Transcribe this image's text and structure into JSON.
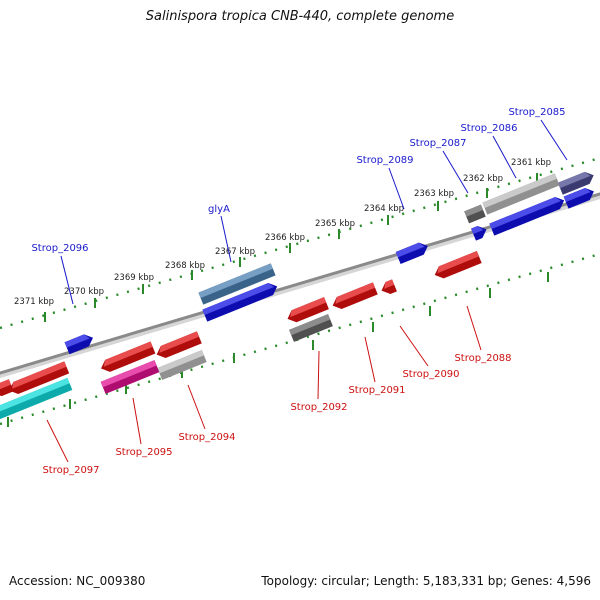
{
  "title": "Salinispora tropica CNB-440, complete genome",
  "footer": {
    "accession": "Accession: NC_009380",
    "summary": "Topology: circular; Length: 5,183,331 bp; Genes: 4,596"
  },
  "colors": {
    "forward_label": "#1a1acc",
    "reverse_label": "#cc1111",
    "backbone": "#8a8a8a",
    "tick": "#2a8a2a"
  },
  "scale_ticks": [
    "2361 kbp",
    "2362 kbp",
    "2363 kbp",
    "2364 kbp",
    "2365 kbp",
    "2366 kbp",
    "2367 kbp",
    "2368 kbp",
    "2369 kbp",
    "2370 kbp",
    "2371 kbp"
  ],
  "genes": [
    {
      "label": "Strop_2085",
      "strand": "forward",
      "color": "#4a4a90"
    },
    {
      "label": "Strop_2086",
      "strand": "forward",
      "color": "#b8b8b8"
    },
    {
      "label": "Strop_2087",
      "strand": "forward",
      "color": "#666666"
    },
    {
      "label": "Strop_2089",
      "strand": "forward",
      "color": "#1010e0"
    },
    {
      "label": "glyA",
      "strand": "forward",
      "color": "#4a7fb0"
    },
    {
      "label": "Strop_2096",
      "strand": "forward",
      "color": "#1010e0"
    },
    {
      "label": "Strop_2088",
      "strand": "reverse",
      "color": "#e01010"
    },
    {
      "label": "Strop_2090",
      "strand": "reverse",
      "color": "#e01010"
    },
    {
      "label": "Strop_2091",
      "strand": "reverse",
      "color": "#e01010"
    },
    {
      "label": "Strop_2092",
      "strand": "reverse",
      "color": "#666666"
    },
    {
      "label": "Strop_2094",
      "strand": "reverse",
      "color": "#b8b8b8"
    },
    {
      "label": "Strop_2095",
      "strand": "reverse",
      "color": "#e01090"
    },
    {
      "label": "Strop_2097",
      "strand": "reverse",
      "color": "#10dada"
    }
  ]
}
